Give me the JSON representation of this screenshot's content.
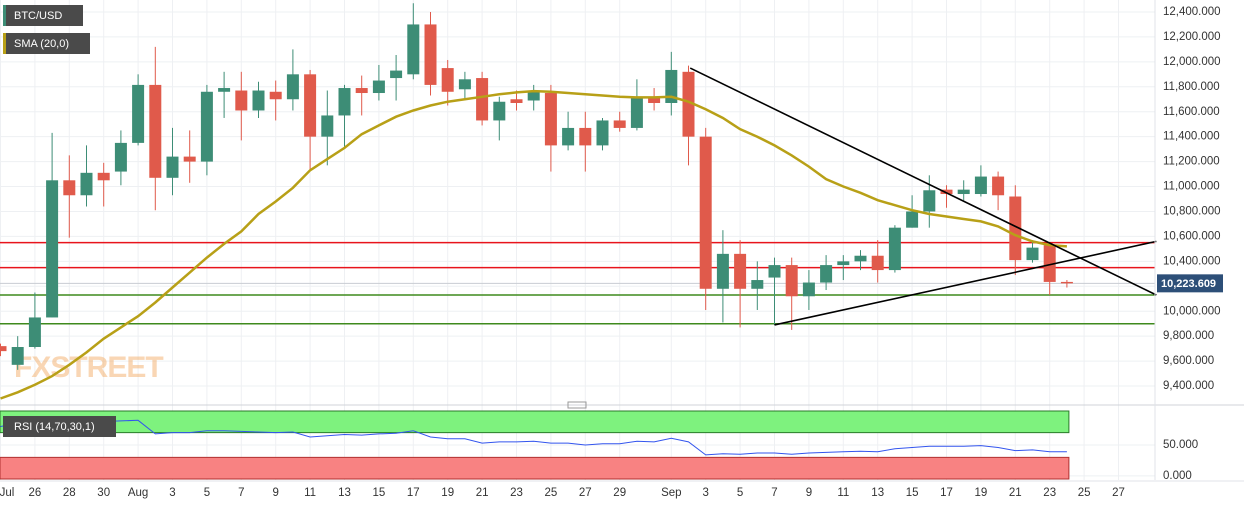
{
  "chart_data": {
    "type": "candlestick",
    "categories": [
      "Jul",
      null,
      "26",
      null,
      "28",
      null,
      "30",
      null,
      "Aug",
      null,
      "3",
      null,
      "5",
      null,
      "7",
      null,
      "9",
      null,
      "11",
      null,
      "13",
      null,
      "15",
      null,
      "17",
      null,
      "19",
      null,
      "21",
      null,
      "23",
      null,
      "25",
      null,
      "27",
      null,
      "29",
      null,
      null,
      "Sep",
      null,
      "3",
      null,
      "5",
      null,
      "7",
      null,
      "9",
      null,
      "11",
      null,
      "13",
      null,
      "15",
      null,
      "17",
      null,
      "19",
      null,
      "21",
      null,
      "23",
      null,
      "25",
      null,
      "27",
      null,
      null
    ],
    "ohlc": {
      "name": "BTC/USD",
      "up_color": "#3d8d76",
      "down_color": "#e05a4b",
      "open": [
        9720,
        9570,
        9713,
        9950,
        11050,
        10930,
        11110,
        11120,
        11350,
        11815,
        11070,
        11240,
        11200,
        11760,
        11770,
        11610,
        11760,
        11700,
        11900,
        11400,
        11570,
        11790,
        11750,
        11870,
        11900,
        12300,
        11950,
        11780,
        11870,
        11530,
        11700,
        11690,
        11750,
        11330,
        11470,
        11330,
        11530,
        11470,
        11720,
        11670,
        11920,
        11400,
        10180,
        10460,
        10180,
        10270,
        10370,
        10120,
        10230,
        10370,
        10400,
        10445,
        10330,
        10670,
        10800,
        10975,
        10940,
        10940,
        11080,
        10920,
        10410,
        10530,
        10235,
        null,
        null,
        null,
        null,
        null
      ],
      "high": [
        9740,
        9800,
        10150,
        11430,
        11250,
        11330,
        11190,
        11450,
        11900,
        12120,
        11470,
        11450,
        11815,
        11920,
        11920,
        11840,
        11850,
        12100,
        11935,
        11770,
        11815,
        11890,
        11975,
        12055,
        12470,
        12400,
        12015,
        11920,
        11920,
        11720,
        11770,
        11815,
        11815,
        11600,
        11600,
        11550,
        11600,
        11860,
        11790,
        12080,
        11970,
        11470,
        10650,
        10570,
        10400,
        10430,
        10430,
        10330,
        10450,
        10450,
        10490,
        10570,
        10690,
        10930,
        11090,
        11010,
        11050,
        11170,
        11120,
        11010,
        10570,
        10550,
        10250,
        null,
        null,
        null,
        null,
        null
      ],
      "low": [
        9640,
        9530,
        9700,
        9950,
        10590,
        10840,
        10840,
        11010,
        11330,
        10810,
        10930,
        11030,
        11090,
        11550,
        11370,
        11550,
        11530,
        11610,
        11130,
        11170,
        11310,
        11570,
        11690,
        11690,
        11860,
        11730,
        11650,
        11690,
        11490,
        11370,
        11610,
        11610,
        11120,
        11290,
        11120,
        11290,
        11440,
        11450,
        11610,
        11570,
        11170,
        10010,
        9910,
        9870,
        10010,
        9890,
        9850,
        10010,
        10170,
        10250,
        10330,
        10230,
        10310,
        10670,
        10670,
        10830,
        10890,
        10920,
        10810,
        10290,
        10390,
        10130,
        10190,
        null,
        null,
        null,
        null,
        null
      ],
      "close": [
        9680,
        9713,
        9950,
        11050,
        10930,
        11110,
        11050,
        11350,
        11815,
        11070,
        11240,
        11200,
        11760,
        11790,
        11610,
        11770,
        11700,
        11900,
        11400,
        11570,
        11790,
        11750,
        11850,
        11930,
        12300,
        11815,
        11760,
        11860,
        11530,
        11680,
        11670,
        11760,
        11330,
        11470,
        11330,
        11530,
        11470,
        11720,
        11670,
        11935,
        11400,
        10180,
        10460,
        10180,
        10250,
        10370,
        10120,
        10230,
        10370,
        10400,
        10445,
        10330,
        10670,
        10800,
        10970,
        10940,
        10975,
        11080,
        10930,
        10410,
        10510,
        10235,
        10223.609,
        null,
        null,
        null,
        null,
        null
      ]
    },
    "overlays": [
      {
        "name": "SMA (20,0)",
        "color": "#b8a017",
        "values": [
          9300,
          9350,
          9410,
          9480,
          9570,
          9670,
          9780,
          9870,
          9960,
          10070,
          10190,
          10310,
          10430,
          10540,
          10640,
          10780,
          10880,
          10990,
          11130,
          11220,
          11310,
          11420,
          11490,
          11560,
          11610,
          11650,
          11680,
          11700,
          11720,
          11740,
          11755,
          11765,
          11760,
          11750,
          11740,
          11730,
          11720,
          11715,
          11715,
          11720,
          11680,
          11620,
          11550,
          11460,
          11400,
          11330,
          11250,
          11160,
          11060,
          11000,
          10950,
          10890,
          10850,
          10810,
          10780,
          10760,
          10740,
          10720,
          10680,
          10610,
          10560,
          10530,
          10520,
          null,
          null,
          null,
          null,
          null
        ]
      }
    ],
    "ylim": [
      9288,
      12496
    ],
    "yticks": [
      {
        "value": 9400,
        "label": "9,400.000"
      },
      {
        "value": 9600,
        "label": "9,600.000"
      },
      {
        "value": 9800,
        "label": "9,800.000"
      },
      {
        "value": 10000,
        "label": "10,000.000"
      },
      {
        "value": 10200,
        "label": "10,200.000"
      },
      {
        "value": 10400,
        "label": "10,400.000"
      },
      {
        "value": 10600,
        "label": "10,600.000"
      },
      {
        "value": 10800,
        "label": "10,800.000"
      },
      {
        "value": 11000,
        "label": "11,000.000"
      },
      {
        "value": 11200,
        "label": "11,200.000"
      },
      {
        "value": 11400,
        "label": "11,400.000"
      },
      {
        "value": 11600,
        "label": "11,600.000"
      },
      {
        "value": 11800,
        "label": "11,800.000"
      },
      {
        "value": 12000,
        "label": "12,000.000"
      },
      {
        "value": 12200,
        "label": "12,200.000"
      },
      {
        "value": 12400,
        "label": "12,400.000"
      }
    ],
    "grid": true,
    "levels": [
      {
        "value": 10550,
        "color": "#e8141c"
      },
      {
        "value": 10350,
        "color": "#e8141c"
      },
      {
        "value": 10130,
        "color": "#3f8a1d"
      },
      {
        "value": 9900,
        "color": "#3f8a1d"
      }
    ],
    "trendlines": [
      {
        "x": [
          40.1,
          67.2
        ],
        "y": [
          11950,
          10130
        ],
        "color": "#000000"
      },
      {
        "x": [
          45,
          67.2
        ],
        "y": [
          9890,
          10560
        ],
        "color": "#000000"
      }
    ],
    "last_price": {
      "value": 10223.609,
      "label": "10,223.609",
      "color": "#2d4f78"
    },
    "watermark": "FXSTREET",
    "rsi": {
      "name": "RSI (14,70,30,1)",
      "color": "#3355ee",
      "values": [
        80,
        85,
        87,
        92,
        88,
        90,
        88,
        89,
        90,
        68,
        70,
        70,
        73,
        73,
        72,
        71,
        70,
        71,
        63,
        65,
        67,
        66,
        68,
        69,
        73,
        63,
        60,
        60,
        53,
        55,
        55,
        56,
        53,
        53,
        50,
        52,
        52,
        56,
        55,
        61,
        55,
        34,
        36,
        35,
        37,
        37,
        35,
        37,
        38,
        39,
        40,
        39,
        44,
        46,
        48,
        48,
        48,
        49,
        46,
        41,
        42,
        39,
        39,
        null,
        null,
        null,
        null,
        null
      ],
      "ylim": [
        -5,
        105
      ],
      "yticks": [
        {
          "value": 0,
          "label": "0.000"
        },
        {
          "value": 50,
          "label": "50.000"
        }
      ],
      "overbought": 70,
      "oversold": 30,
      "overbought_color": "#7ef27e",
      "oversold_color": "#f88282"
    }
  }
}
